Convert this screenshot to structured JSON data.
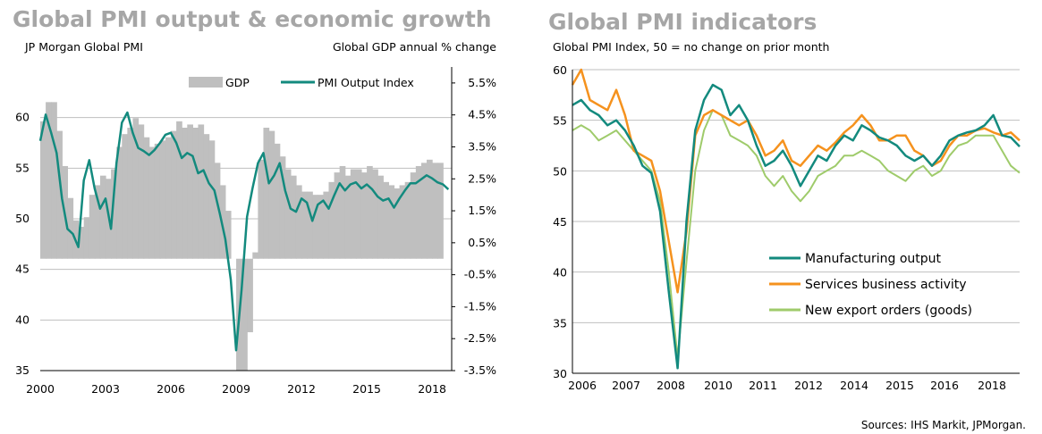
{
  "left": {
    "title": "Global PMI output & economic growth",
    "subtitle_left": "JP Morgan Global PMI",
    "subtitle_right": "Global GDP annual % change"
  },
  "right": {
    "title": "Global PMI indicators",
    "subtitle": "Global PMI Index, 50 = no change on prior month"
  },
  "source": "Sources: IHS Markit, JPMorgan.",
  "colors": {
    "gdp": "#bfbfbf",
    "pmi": "#138a7e",
    "mfg": "#138a7e",
    "services": "#f5921e",
    "exports": "#9fcb6b",
    "title": "#a6a6a6"
  },
  "chart_data": [
    {
      "type": "bar+line",
      "title": "Global PMI output & economic growth",
      "ylabel": "JP Morgan Global PMI",
      "y2label": "Global GDP annual % change",
      "ylim": [
        35,
        65
      ],
      "y2lim": [
        -3.5,
        6.0
      ],
      "yticks": [
        35,
        40,
        45,
        50,
        55,
        60
      ],
      "y2ticks": [
        "5.5%",
        "4.5%",
        "3.5%",
        "2.5%",
        "1.5%",
        "0.5%",
        "-0.5%",
        "-1.5%",
        "-2.5%",
        "-3.5%"
      ],
      "xlim": [
        2000.0,
        2018.9
      ],
      "xticks": [
        "2000",
        "2003",
        "2006",
        "2009",
        "2012",
        "2015",
        "2018"
      ],
      "legend": [
        "GDP",
        "PMI Output Index"
      ],
      "series": [
        {
          "name": "GDP",
          "kind": "bar",
          "axis": "right",
          "x": [
            2000.0,
            2000.25,
            2000.5,
            2000.75,
            2001.0,
            2001.25,
            2001.5,
            2001.75,
            2002.0,
            2002.25,
            2002.5,
            2002.75,
            2003.0,
            2003.25,
            2003.5,
            2003.75,
            2004.0,
            2004.25,
            2004.5,
            2004.75,
            2005.0,
            2005.25,
            2005.5,
            2005.75,
            2006.0,
            2006.25,
            2006.5,
            2006.75,
            2007.0,
            2007.25,
            2007.5,
            2007.75,
            2008.0,
            2008.25,
            2008.5,
            2008.75,
            2009.0,
            2009.25,
            2009.5,
            2009.75,
            2010.0,
            2010.25,
            2010.5,
            2010.75,
            2011.0,
            2011.25,
            2011.5,
            2011.75,
            2012.0,
            2012.25,
            2012.5,
            2012.75,
            2013.0,
            2013.25,
            2013.5,
            2013.75,
            2014.0,
            2014.25,
            2014.5,
            2014.75,
            2015.0,
            2015.25,
            2015.5,
            2015.75,
            2016.0,
            2016.25,
            2016.5,
            2016.75,
            2017.0,
            2017.25,
            2017.5,
            2017.75,
            2018.0,
            2018.25
          ],
          "values": [
            4.3,
            4.9,
            4.9,
            4.0,
            2.9,
            1.9,
            1.2,
            1.0,
            1.3,
            2.0,
            2.3,
            2.6,
            2.5,
            2.8,
            3.5,
            3.9,
            4.1,
            4.4,
            4.2,
            3.8,
            3.5,
            3.6,
            3.7,
            3.8,
            4.0,
            4.3,
            4.1,
            4.2,
            4.1,
            4.2,
            3.9,
            3.7,
            3.0,
            2.3,
            1.5,
            0.0,
            -3.5,
            -3.5,
            -2.3,
            0.2,
            3.1,
            4.1,
            4.0,
            3.6,
            3.2,
            2.8,
            2.6,
            2.3,
            2.1,
            2.1,
            2.0,
            2.0,
            2.1,
            2.4,
            2.7,
            2.9,
            2.6,
            2.8,
            2.8,
            2.7,
            2.9,
            2.8,
            2.6,
            2.4,
            2.3,
            2.2,
            2.3,
            2.4,
            2.7,
            2.9,
            3.0,
            3.1,
            3.0,
            3.0
          ]
        },
        {
          "name": "PMI Output Index",
          "kind": "line",
          "axis": "left",
          "x": [
            2000.0,
            2000.25,
            2000.5,
            2000.75,
            2001.0,
            2001.25,
            2001.5,
            2001.75,
            2002.0,
            2002.25,
            2002.5,
            2002.75,
            2003.0,
            2003.25,
            2003.5,
            2003.75,
            2004.0,
            2004.25,
            2004.5,
            2004.75,
            2005.0,
            2005.25,
            2005.5,
            2005.75,
            2006.0,
            2006.25,
            2006.5,
            2006.75,
            2007.0,
            2007.25,
            2007.5,
            2007.75,
            2008.0,
            2008.25,
            2008.5,
            2008.75,
            2009.0,
            2009.25,
            2009.5,
            2009.75,
            2010.0,
            2010.25,
            2010.5,
            2010.75,
            2011.0,
            2011.25,
            2011.5,
            2011.75,
            2012.0,
            2012.25,
            2012.5,
            2012.75,
            2013.0,
            2013.25,
            2013.5,
            2013.75,
            2014.0,
            2014.25,
            2014.5,
            2014.75,
            2015.0,
            2015.25,
            2015.5,
            2015.75,
            2016.0,
            2016.25,
            2016.5,
            2016.75,
            2017.0,
            2017.25,
            2017.5,
            2017.75,
            2018.0,
            2018.25,
            2018.5,
            2018.75
          ],
          "values": [
            57.7,
            60.3,
            58.5,
            56.5,
            52.0,
            49.0,
            48.5,
            47.2,
            53.8,
            55.8,
            53.0,
            51.0,
            52.0,
            49.0,
            55.5,
            59.5,
            60.5,
            58.5,
            57.0,
            56.7,
            56.3,
            56.8,
            57.5,
            58.3,
            58.5,
            57.5,
            56.0,
            56.5,
            56.2,
            54.5,
            54.8,
            53.5,
            52.8,
            50.5,
            48.0,
            44.0,
            37.0,
            43.0,
            50.2,
            53.0,
            55.5,
            56.5,
            53.5,
            54.3,
            55.5,
            52.8,
            51.0,
            50.7,
            52.0,
            51.6,
            49.8,
            51.4,
            51.8,
            51.0,
            52.3,
            53.5,
            52.8,
            53.4,
            53.6,
            53.0,
            53.4,
            52.9,
            52.2,
            51.8,
            52.0,
            51.1,
            52.0,
            52.8,
            53.5,
            53.5,
            53.9,
            54.3,
            54.0,
            53.6,
            53.4,
            52.9
          ]
        }
      ]
    },
    {
      "type": "line",
      "title": "Global PMI indicators",
      "ylabel": "Global PMI Index, 50 = no change on prior month",
      "ylim": [
        30,
        60
      ],
      "yticks": [
        30,
        35,
        40,
        45,
        50,
        55,
        60
      ],
      "xlim": [
        2006.0,
        2018.75
      ],
      "xticks": [
        "2006",
        "2007",
        "2008",
        "2010",
        "2011",
        "2012",
        "2014",
        "2015",
        "2016",
        "2018"
      ],
      "x": [
        2006.0,
        2006.25,
        2006.5,
        2006.75,
        2007.0,
        2007.25,
        2007.5,
        2007.75,
        2008.0,
        2008.25,
        2008.5,
        2008.75,
        2009.0,
        2009.25,
        2009.5,
        2009.75,
        2010.0,
        2010.25,
        2010.5,
        2010.75,
        2011.0,
        2011.25,
        2011.5,
        2011.75,
        2012.0,
        2012.25,
        2012.5,
        2012.75,
        2013.0,
        2013.25,
        2013.5,
        2013.75,
        2014.0,
        2014.25,
        2014.5,
        2014.75,
        2015.0,
        2015.25,
        2015.5,
        2015.75,
        2016.0,
        2016.25,
        2016.5,
        2016.75,
        2017.0,
        2017.25,
        2017.5,
        2017.75,
        2018.0,
        2018.25,
        2018.5,
        2018.75
      ],
      "series": [
        {
          "name": "Manufacturing output",
          "values": [
            56.5,
            57.0,
            56.0,
            55.5,
            54.5,
            55.0,
            54.0,
            52.5,
            50.5,
            49.8,
            46.0,
            38.0,
            30.5,
            45.0,
            54.0,
            57.0,
            58.5,
            58.0,
            55.5,
            56.5,
            55.0,
            52.5,
            50.5,
            51.0,
            52.0,
            50.5,
            48.5,
            50.0,
            51.5,
            51.0,
            52.5,
            53.5,
            53.0,
            54.5,
            54.0,
            53.3,
            53.0,
            52.5,
            51.5,
            51.0,
            51.5,
            50.5,
            51.5,
            53.0,
            53.5,
            53.8,
            54.0,
            54.5,
            55.5,
            53.5,
            53.3,
            52.4
          ]
        },
        {
          "name": "Services business activity",
          "values": [
            58.5,
            60.0,
            57.0,
            56.5,
            56.0,
            58.0,
            55.5,
            52.0,
            51.5,
            51.0,
            48.0,
            43.0,
            38.0,
            44.0,
            53.5,
            55.5,
            56.0,
            55.5,
            55.0,
            54.5,
            55.0,
            53.5,
            51.5,
            52.0,
            53.0,
            51.0,
            50.5,
            51.5,
            52.5,
            52.0,
            52.8,
            53.8,
            54.5,
            55.5,
            54.5,
            53.0,
            53.0,
            53.5,
            53.5,
            52.0,
            51.5,
            50.5,
            51.0,
            52.5,
            53.5,
            53.5,
            54.0,
            54.2,
            53.8,
            53.5,
            53.8,
            53.0
          ]
        },
        {
          "name": "New export orders (goods)",
          "values": [
            54.0,
            54.5,
            54.0,
            53.0,
            53.5,
            54.0,
            53.0,
            52.0,
            51.0,
            50.0,
            47.0,
            40.0,
            31.5,
            41.0,
            50.0,
            54.0,
            56.0,
            55.5,
            53.5,
            53.0,
            52.5,
            51.5,
            49.5,
            48.5,
            49.5,
            48.0,
            47.0,
            48.0,
            49.5,
            50.0,
            50.5,
            51.5,
            51.5,
            52.0,
            51.5,
            51.0,
            50.0,
            49.5,
            49.0,
            50.0,
            50.5,
            49.5,
            50.0,
            51.5,
            52.5,
            52.8,
            53.5,
            53.5,
            53.5,
            52.0,
            50.5,
            49.8
          ]
        }
      ]
    }
  ]
}
